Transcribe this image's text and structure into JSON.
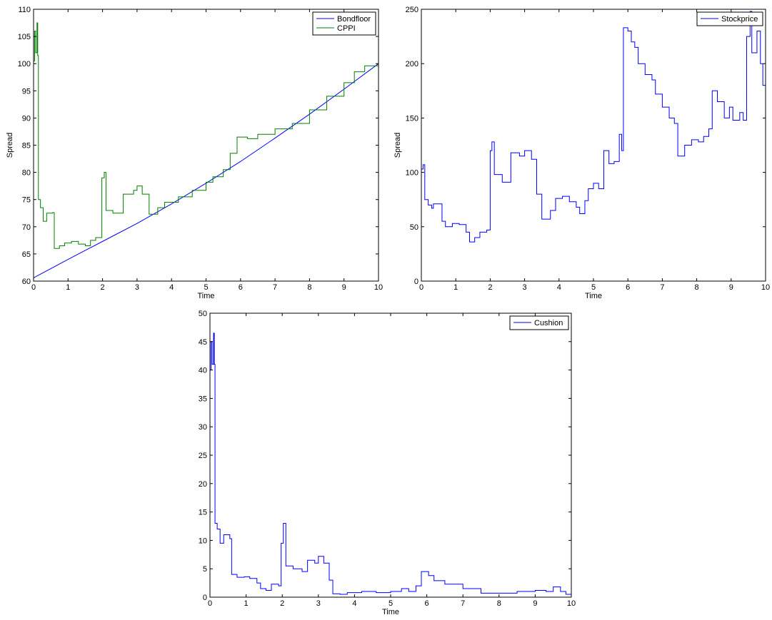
{
  "chart_data": [
    {
      "type": "line",
      "xlabel": "Time",
      "ylabel": "Spread",
      "xlim": [
        0,
        10
      ],
      "ylim": [
        60,
        110
      ],
      "xticks": [
        0,
        1,
        2,
        3,
        4,
        5,
        6,
        7,
        8,
        9,
        10
      ],
      "yticks": [
        60,
        65,
        70,
        75,
        80,
        85,
        90,
        95,
        100,
        105,
        110
      ],
      "grid": false,
      "legend_position": "top-right",
      "series": [
        {
          "name": "Bondfloor",
          "color": "#0000ff",
          "step": false,
          "points": [
            [
              0,
              60.6
            ],
            [
              1,
              64.0
            ],
            [
              2,
              67.3
            ],
            [
              3,
              70.6
            ],
            [
              4,
              74.2
            ],
            [
              5,
              78.0
            ],
            [
              6,
              82.0
            ],
            [
              7,
              86.3
            ],
            [
              8,
              90.7
            ],
            [
              9,
              95.3
            ],
            [
              10,
              100.0
            ]
          ]
        },
        {
          "name": "CPPI",
          "color": "#008000",
          "step": true,
          "points": [
            [
              0,
              100.5
            ],
            [
              0.03,
              106
            ],
            [
              0.06,
              102
            ],
            [
              0.1,
              107.5
            ],
            [
              0.12,
              101.5
            ],
            [
              0.14,
              75
            ],
            [
              0.2,
              73.5
            ],
            [
              0.28,
              71
            ],
            [
              0.38,
              72.5
            ],
            [
              0.55,
              72.6
            ],
            [
              0.6,
              66
            ],
            [
              0.75,
              66.5
            ],
            [
              0.9,
              67
            ],
            [
              1.1,
              67.3
            ],
            [
              1.3,
              66.8
            ],
            [
              1.5,
              66.5
            ],
            [
              1.65,
              67.5
            ],
            [
              1.8,
              68
            ],
            [
              1.98,
              79
            ],
            [
              2.05,
              80
            ],
            [
              2.1,
              73
            ],
            [
              2.3,
              72.5
            ],
            [
              2.6,
              76
            ],
            [
              2.9,
              76.7
            ],
            [
              3.0,
              77.5
            ],
            [
              3.15,
              76
            ],
            [
              3.35,
              72.3
            ],
            [
              3.6,
              73.5
            ],
            [
              3.8,
              74.5
            ],
            [
              4.2,
              75.5
            ],
            [
              4.6,
              76.7
            ],
            [
              5.0,
              78.2
            ],
            [
              5.2,
              79.2
            ],
            [
              5.5,
              80.5
            ],
            [
              5.7,
              83.5
            ],
            [
              5.9,
              86.5
            ],
            [
              6.2,
              86.2
            ],
            [
              6.5,
              87
            ],
            [
              7.0,
              88
            ],
            [
              7.5,
              89
            ],
            [
              8.0,
              91.5
            ],
            [
              8.5,
              94
            ],
            [
              9.0,
              96.5
            ],
            [
              9.3,
              98.5
            ],
            [
              9.6,
              99.6
            ],
            [
              10.0,
              100.2
            ]
          ]
        }
      ]
    },
    {
      "type": "line",
      "xlabel": "Time",
      "ylabel": "Spread",
      "xlim": [
        0,
        10
      ],
      "ylim": [
        0,
        250
      ],
      "xticks": [
        0,
        1,
        2,
        3,
        4,
        5,
        6,
        7,
        8,
        9,
        10
      ],
      "yticks": [
        0,
        50,
        100,
        150,
        200,
        250
      ],
      "grid": false,
      "legend_position": "top-right",
      "series": [
        {
          "name": "Stockprice",
          "color": "#0000ff",
          "step": true,
          "points": [
            [
              0,
              103
            ],
            [
              0.05,
              107
            ],
            [
              0.1,
              75
            ],
            [
              0.2,
              70
            ],
            [
              0.3,
              67
            ],
            [
              0.35,
              71
            ],
            [
              0.6,
              55
            ],
            [
              0.7,
              50
            ],
            [
              0.9,
              53
            ],
            [
              1.1,
              52
            ],
            [
              1.3,
              45
            ],
            [
              1.4,
              36
            ],
            [
              1.55,
              40
            ],
            [
              1.7,
              45
            ],
            [
              1.9,
              47
            ],
            [
              2.0,
              120
            ],
            [
              2.05,
              128
            ],
            [
              2.12,
              98
            ],
            [
              2.35,
              91
            ],
            [
              2.6,
              118
            ],
            [
              2.85,
              115
            ],
            [
              3.0,
              120
            ],
            [
              3.2,
              112
            ],
            [
              3.35,
              80
            ],
            [
              3.5,
              57
            ],
            [
              3.75,
              65
            ],
            [
              3.9,
              76
            ],
            [
              4.1,
              78
            ],
            [
              4.3,
              73
            ],
            [
              4.5,
              68
            ],
            [
              4.6,
              62
            ],
            [
              4.75,
              74
            ],
            [
              4.85,
              85
            ],
            [
              5.0,
              90
            ],
            [
              5.15,
              85
            ],
            [
              5.3,
              120
            ],
            [
              5.45,
              108
            ],
            [
              5.6,
              110
            ],
            [
              5.75,
              135
            ],
            [
              5.82,
              120
            ],
            [
              5.87,
              233
            ],
            [
              6.0,
              230
            ],
            [
              6.1,
              220
            ],
            [
              6.2,
              215
            ],
            [
              6.3,
              200
            ],
            [
              6.5,
              190
            ],
            [
              6.7,
              185
            ],
            [
              6.8,
              172
            ],
            [
              7.0,
              160
            ],
            [
              7.2,
              150
            ],
            [
              7.35,
              145
            ],
            [
              7.45,
              115
            ],
            [
              7.65,
              125
            ],
            [
              7.85,
              130
            ],
            [
              8.05,
              128
            ],
            [
              8.2,
              133
            ],
            [
              8.35,
              140
            ],
            [
              8.45,
              175
            ],
            [
              8.6,
              165
            ],
            [
              8.8,
              150
            ],
            [
              8.95,
              160
            ],
            [
              9.05,
              148
            ],
            [
              9.25,
              155
            ],
            [
              9.35,
              148
            ],
            [
              9.45,
              225
            ],
            [
              9.55,
              248
            ],
            [
              9.6,
              210
            ],
            [
              9.75,
              230
            ],
            [
              9.85,
              200
            ],
            [
              9.92,
              180
            ],
            [
              10.0,
              140
            ]
          ]
        }
      ]
    },
    {
      "type": "line",
      "xlabel": "Time",
      "ylabel": "",
      "xlim": [
        0,
        10
      ],
      "ylim": [
        0,
        50
      ],
      "xticks": [
        0,
        1,
        2,
        3,
        4,
        5,
        6,
        7,
        8,
        9,
        10
      ],
      "yticks": [
        0,
        5,
        10,
        15,
        20,
        25,
        30,
        35,
        40,
        45,
        50
      ],
      "grid": false,
      "legend_position": "top-right",
      "series": [
        {
          "name": "Cushion",
          "color": "#0000ff",
          "step": true,
          "points": [
            [
              0,
              40
            ],
            [
              0.03,
              45
            ],
            [
              0.06,
              41
            ],
            [
              0.1,
              46.5
            ],
            [
              0.12,
              41
            ],
            [
              0.14,
              13
            ],
            [
              0.2,
              12
            ],
            [
              0.28,
              9.5
            ],
            [
              0.38,
              11
            ],
            [
              0.55,
              10.3
            ],
            [
              0.6,
              4
            ],
            [
              0.75,
              3.5
            ],
            [
              0.95,
              3.6
            ],
            [
              1.1,
              3.3
            ],
            [
              1.3,
              2.5
            ],
            [
              1.4,
              1.5
            ],
            [
              1.55,
              1.2
            ],
            [
              1.7,
              2.3
            ],
            [
              1.9,
              2.0
            ],
            [
              1.97,
              9.5
            ],
            [
              2.03,
              13
            ],
            [
              2.1,
              5.5
            ],
            [
              2.3,
              5.0
            ],
            [
              2.55,
              4.5
            ],
            [
              2.7,
              6.5
            ],
            [
              2.9,
              6.0
            ],
            [
              3.0,
              7.2
            ],
            [
              3.15,
              6.0
            ],
            [
              3.3,
              3.0
            ],
            [
              3.4,
              0.6
            ],
            [
              3.6,
              0.5
            ],
            [
              3.8,
              0.8
            ],
            [
              4.2,
              1.0
            ],
            [
              4.6,
              0.8
            ],
            [
              5.0,
              1.0
            ],
            [
              5.3,
              1.5
            ],
            [
              5.5,
              1.0
            ],
            [
              5.7,
              2.0
            ],
            [
              5.85,
              4.5
            ],
            [
              6.05,
              3.8
            ],
            [
              6.2,
              2.9
            ],
            [
              6.5,
              2.3
            ],
            [
              7.0,
              1.5
            ],
            [
              7.5,
              0.7
            ],
            [
              8.0,
              0.7
            ],
            [
              8.5,
              1.0
            ],
            [
              9.0,
              1.2
            ],
            [
              9.3,
              1.0
            ],
            [
              9.5,
              1.8
            ],
            [
              9.7,
              1.0
            ],
            [
              9.85,
              0.5
            ],
            [
              10.0,
              0.2
            ]
          ]
        }
      ]
    }
  ]
}
